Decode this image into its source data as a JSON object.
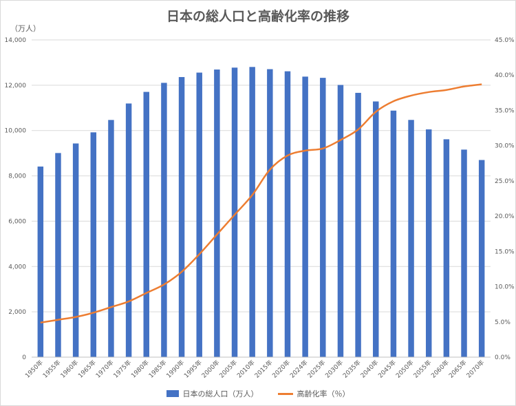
{
  "chart_data": {
    "type": "bar",
    "title": "日本の総人口と高齢化率の推移",
    "y_unit_label": "（万人）",
    "categories": [
      "1950年",
      "1955年",
      "1960年",
      "1965年",
      "1970年",
      "1975年",
      "1980年",
      "1985年",
      "1990年",
      "1995年",
      "2000年",
      "2005年",
      "2010年",
      "2015年",
      "2020年",
      "2024年",
      "2025年",
      "2030年",
      "2035年",
      "2040年",
      "2045年",
      "2050年",
      "2055年",
      "2060年",
      "2065年",
      "2070年"
    ],
    "series": [
      {
        "name": "日本の総人口（万人）",
        "type": "bar",
        "axis": "left",
        "color": "#4472c4",
        "values": [
          8411,
          9008,
          9430,
          9921,
          10467,
          11194,
          11706,
          12105,
          12361,
          12557,
          12693,
          12777,
          12806,
          12709,
          12615,
          12380,
          12326,
          12012,
          11664,
          11284,
          10880,
          10469,
          10051,
          9615,
          9159,
          8700
        ]
      },
      {
        "name": "高齢化率（％）",
        "type": "line",
        "axis": "right",
        "color": "#ed7d31",
        "values": [
          4.9,
          5.3,
          5.7,
          6.3,
          7.1,
          7.9,
          9.1,
          10.3,
          12.1,
          14.6,
          17.4,
          20.2,
          23.0,
          26.6,
          28.6,
          29.3,
          29.6,
          30.8,
          32.3,
          34.8,
          36.3,
          37.1,
          37.6,
          37.9,
          38.4,
          38.7
        ]
      }
    ],
    "y_left": {
      "min": 0,
      "max": 14000,
      "ticks": [
        "0",
        "2,000",
        "4,000",
        "6,000",
        "8,000",
        "10,000",
        "12,000",
        "14,000"
      ]
    },
    "y_right": {
      "min": 0,
      "max": 45,
      "ticks": [
        "0.0%",
        "5.0%",
        "10.0%",
        "15.0%",
        "20.0%",
        "25.0%",
        "30.0%",
        "35.0%",
        "40.0%",
        "45.0%"
      ]
    },
    "grid": true,
    "legend_position": "bottom"
  }
}
